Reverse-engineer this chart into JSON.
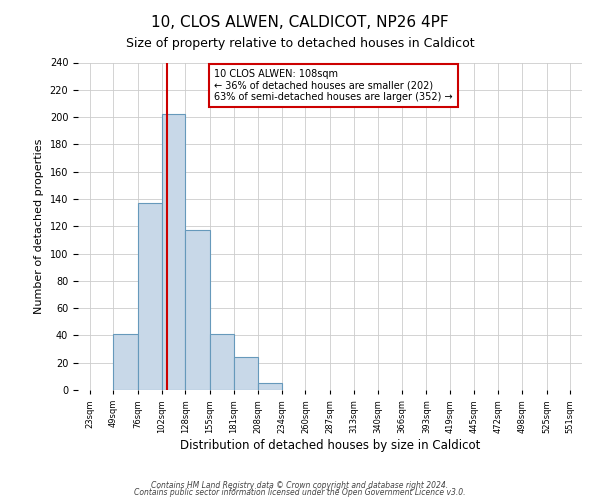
{
  "title": "10, CLOS ALWEN, CALDICOT, NP26 4PF",
  "subtitle": "Size of property relative to detached houses in Caldicot",
  "xlabel": "Distribution of detached houses by size in Caldicot",
  "ylabel": "Number of detached properties",
  "bar_edges": [
    23,
    49,
    76,
    102,
    128,
    155,
    181,
    208,
    234,
    260,
    287,
    313,
    340,
    366,
    393,
    419,
    445,
    472,
    498,
    525,
    551
  ],
  "bar_heights": [
    0,
    41,
    137,
    202,
    117,
    41,
    24,
    5,
    0,
    0,
    0,
    0,
    0,
    0,
    0,
    0,
    0,
    0,
    0,
    0
  ],
  "bar_color": "#c8d8e8",
  "bar_edgecolor": "#6699bb",
  "property_line_x": 108,
  "property_line_color": "#cc0000",
  "annotation_text": "10 CLOS ALWEN: 108sqm\n← 36% of detached houses are smaller (202)\n63% of semi-detached houses are larger (352) →",
  "annotation_box_color": "#ffffff",
  "annotation_box_edgecolor": "#cc0000",
  "ylim": [
    0,
    240
  ],
  "yticks": [
    0,
    20,
    40,
    60,
    80,
    100,
    120,
    140,
    160,
    180,
    200,
    220,
    240
  ],
  "tick_labels": [
    "23sqm",
    "49sqm",
    "76sqm",
    "102sqm",
    "128sqm",
    "155sqm",
    "181sqm",
    "208sqm",
    "234sqm",
    "260sqm",
    "287sqm",
    "313sqm",
    "340sqm",
    "366sqm",
    "393sqm",
    "419sqm",
    "445sqm",
    "472sqm",
    "498sqm",
    "525sqm",
    "551sqm"
  ],
  "footer_line1": "Contains HM Land Registry data © Crown copyright and database right 2024.",
  "footer_line2": "Contains public sector information licensed under the Open Government Licence v3.0.",
  "background_color": "#ffffff",
  "grid_color": "#cccccc"
}
